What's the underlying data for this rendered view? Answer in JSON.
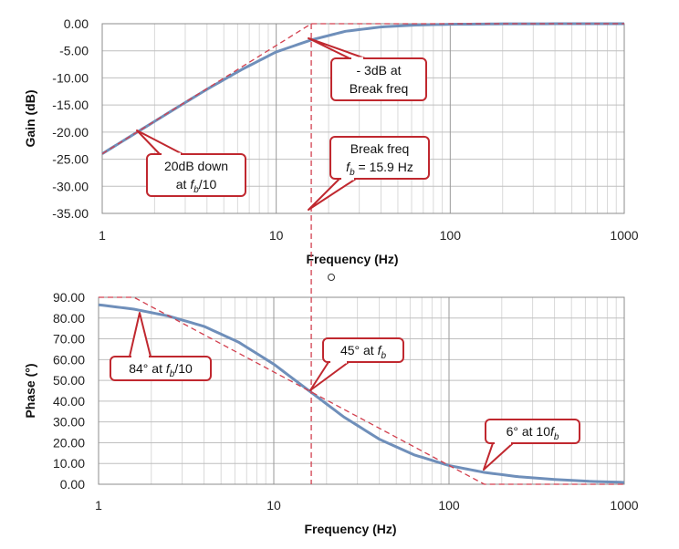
{
  "chart_data": [
    {
      "type": "line",
      "xscale": "log",
      "xlim": [
        1,
        1000
      ],
      "ylim": [
        -35,
        0
      ],
      "xlabel": "Frequency (Hz)",
      "ylabel": "Gain (dB)",
      "x_ticks": [
        "1",
        "10",
        "100",
        "1000"
      ],
      "y_ticks": [
        "0.00",
        "-5.00",
        "-10.00",
        "-15.00",
        "-20.00",
        "-25.00",
        "-30.00",
        "-35.00"
      ],
      "grid": true,
      "series": [
        {
          "style": "solid",
          "color": "#6f8fba",
          "x": [
            1,
            1.59,
            2.5,
            4,
            6.3,
            10,
            15.9,
            25,
            40,
            63,
            100,
            200,
            500,
            1000
          ],
          "y": [
            -24.0,
            -20.0,
            -16.1,
            -12.1,
            -8.5,
            -5.2,
            -3.0,
            -1.4,
            -0.6,
            -0.25,
            -0.1,
            -0.03,
            0,
            0
          ]
        },
        {
          "style": "dashed",
          "color": "#d23f4e",
          "x": [
            1,
            15.9,
            1000
          ],
          "y": [
            -24.0,
            0,
            0
          ]
        }
      ],
      "annotations": [
        {
          "lines": [
            "- 3dB at",
            "Break freq"
          ]
        },
        {
          "lines": [
            "20dB down",
            "at {fb}/10"
          ]
        },
        {
          "lines": [
            "Break freq",
            "{fb} = 15.9 Hz"
          ]
        }
      ],
      "break_line": {
        "x": 15.9,
        "style": "dashed",
        "color": "#d23f4e"
      }
    },
    {
      "type": "line",
      "xscale": "log",
      "xlim": [
        1,
        1000
      ],
      "ylim": [
        0,
        90
      ],
      "xlabel": "Frequency (Hz)",
      "ylabel": "Phase (°)",
      "x_ticks": [
        "1",
        "10",
        "100",
        "1000"
      ],
      "y_ticks": [
        "90.00",
        "80.00",
        "70.00",
        "60.00",
        "50.00",
        "40.00",
        "30.00",
        "20.00",
        "10.00",
        "0.00"
      ],
      "grid": true,
      "series": [
        {
          "style": "solid",
          "color": "#6f8fba",
          "x": [
            1,
            1.59,
            2.5,
            4,
            6.3,
            10,
            15.9,
            25,
            40,
            63,
            100,
            159,
            250,
            400,
            630,
            1000
          ],
          "y": [
            86.4,
            84.3,
            81.0,
            76.0,
            68.4,
            57.8,
            45.0,
            32.5,
            21.7,
            14.2,
            9.0,
            5.7,
            3.6,
            2.3,
            1.4,
            0.9
          ]
        },
        {
          "style": "dashed",
          "color": "#d23f4e",
          "x": [
            1,
            1.59,
            159,
            1000
          ],
          "y": [
            90,
            90,
            0,
            0
          ]
        }
      ],
      "annotations": [
        {
          "lines": [
            "84° at {fb}/10"
          ]
        },
        {
          "lines": [
            "45° at {fb}"
          ]
        },
        {
          "lines": [
            "6° at 10{fb}"
          ]
        }
      ]
    }
  ],
  "f_sub_b": {
    "f": "f",
    "b": "b"
  },
  "cursor_icon": "circle-cursor-icon"
}
